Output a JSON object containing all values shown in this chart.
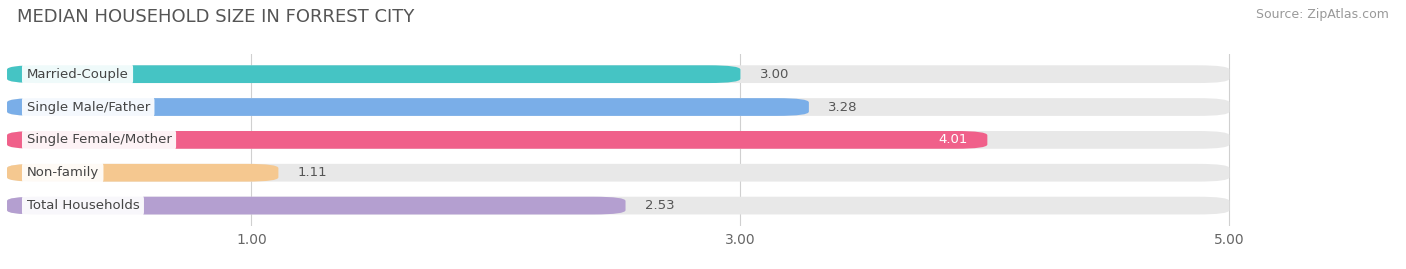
{
  "title": "MEDIAN HOUSEHOLD SIZE IN FORREST CITY",
  "source": "Source: ZipAtlas.com",
  "categories": [
    "Married-Couple",
    "Single Male/Father",
    "Single Female/Mother",
    "Non-family",
    "Total Households"
  ],
  "values": [
    3.0,
    3.28,
    4.01,
    1.11,
    2.53
  ],
  "bar_colors": [
    "#45c4c4",
    "#7aaee8",
    "#f0608a",
    "#f5c890",
    "#b49fd0"
  ],
  "value_labels": [
    "3.00",
    "3.28",
    "4.01",
    "1.11",
    "2.53"
  ],
  "value_label_white": [
    false,
    false,
    true,
    false,
    false
  ],
  "xlim_left": 0.0,
  "xlim_right": 5.55,
  "data_min": 0.0,
  "data_max": 5.0,
  "xticks": [
    1.0,
    3.0,
    5.0
  ],
  "xticklabels": [
    "1.00",
    "3.00",
    "5.00"
  ],
  "background_color": "#ffffff",
  "bar_bg_color": "#e8e8e8",
  "title_fontsize": 13,
  "source_fontsize": 9,
  "label_fontsize": 9.5,
  "value_fontsize": 9.5,
  "tick_fontsize": 10
}
